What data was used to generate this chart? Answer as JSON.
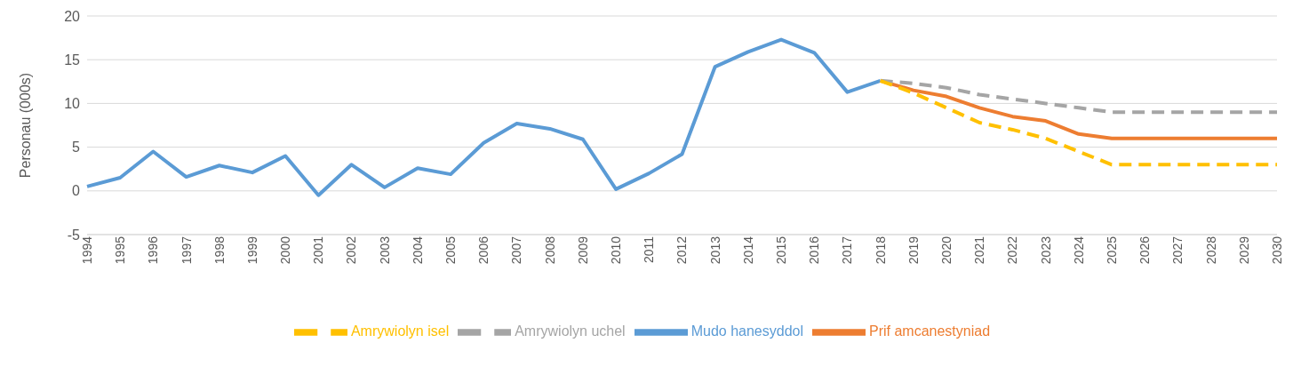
{
  "chart_data": {
    "type": "line",
    "ylabel": "Personau (000s)",
    "categories": [
      "1994",
      "1995",
      "1996",
      "1997",
      "1998",
      "1999",
      "2000",
      "2001",
      "2002",
      "2003",
      "2004",
      "2005",
      "2006",
      "2007",
      "2008",
      "2009",
      "2010",
      "2011",
      "2012",
      "2013",
      "2014",
      "2015",
      "2016",
      "2017",
      "2018",
      "2019",
      "2020",
      "2021",
      "2022",
      "2023",
      "2024",
      "2025",
      "2026",
      "2027",
      "2028",
      "2029",
      "2030"
    ],
    "series": [
      {
        "name": "Mudo hanesyddol",
        "color": "#5b9bd5",
        "line_style": "solid",
        "values": [
          0.5,
          1.5,
          4.5,
          1.6,
          2.9,
          2.1,
          4.0,
          -0.5,
          3.0,
          0.4,
          2.6,
          1.9,
          5.5,
          7.7,
          7.1,
          5.9,
          0.2,
          2.0,
          4.2,
          14.2,
          15.9,
          17.3,
          15.8,
          11.3,
          12.6,
          null,
          null,
          null,
          null,
          null,
          null,
          null,
          null,
          null,
          null,
          null,
          null
        ]
      },
      {
        "name": "Prif amcanestyniad",
        "color": "#ed7d31",
        "line_style": "solid",
        "values": [
          null,
          null,
          null,
          null,
          null,
          null,
          null,
          null,
          null,
          null,
          null,
          null,
          null,
          null,
          null,
          null,
          null,
          null,
          null,
          null,
          null,
          null,
          null,
          null,
          12.6,
          11.5,
          10.8,
          9.5,
          8.5,
          8.0,
          6.5,
          6,
          6,
          6,
          6,
          6,
          6
        ]
      },
      {
        "name": "Amrywiolyn uchel",
        "color": "#a5a5a5",
        "line_style": "dashed",
        "values": [
          null,
          null,
          null,
          null,
          null,
          null,
          null,
          null,
          null,
          null,
          null,
          null,
          null,
          null,
          null,
          null,
          null,
          null,
          null,
          null,
          null,
          null,
          null,
          null,
          12.6,
          12.3,
          11.8,
          11,
          10.5,
          10,
          9.5,
          9,
          9,
          9,
          9,
          9,
          9
        ]
      },
      {
        "name": "Amrywiolyn isel",
        "color": "#ffc000",
        "line_style": "dashed",
        "values": [
          null,
          null,
          null,
          null,
          null,
          null,
          null,
          null,
          null,
          null,
          null,
          null,
          null,
          null,
          null,
          null,
          null,
          null,
          null,
          null,
          null,
          null,
          null,
          null,
          12.6,
          11.2,
          9.5,
          7.8,
          7,
          6,
          4.5,
          3,
          3,
          3,
          3,
          3,
          3
        ]
      }
    ],
    "ylim": [
      -5,
      20
    ],
    "yticks": [
      -5,
      0,
      5,
      10,
      15,
      20
    ],
    "grid": "y",
    "legend": "bottom",
    "marker": "none"
  }
}
